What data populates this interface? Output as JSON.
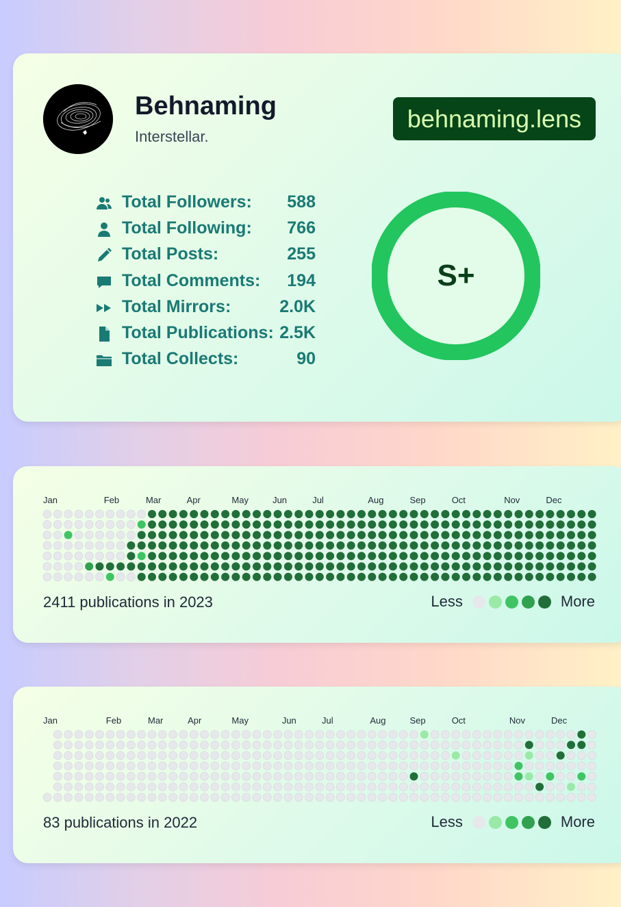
{
  "profile": {
    "name": "Behnaming",
    "bio": "Interstellar.",
    "handle": "behnaming.lens",
    "rank": "S+",
    "stats": [
      {
        "icon": "users-icon",
        "label": "Total Followers:",
        "value": "588"
      },
      {
        "icon": "user-icon",
        "label": "Total Following:",
        "value": "766"
      },
      {
        "icon": "pencil-icon",
        "label": "Total Posts:",
        "value": "255"
      },
      {
        "icon": "comment-icon",
        "label": "Total Comments:",
        "value": "194"
      },
      {
        "icon": "mirror-icon",
        "label": "Total Mirrors:",
        "value": "2.0K"
      },
      {
        "icon": "file-icon",
        "label": "Total Publications:",
        "value": "2.5K"
      },
      {
        "icon": "folder-icon",
        "label": "Total Collects:",
        "value": "90"
      }
    ]
  },
  "colors": {
    "levels": [
      "#e6e8eb",
      "#9be9a8",
      "#40c463",
      "#30a14e",
      "#216e39"
    ],
    "accent": "#1a7a74",
    "badge_bg": "#064518",
    "badge_text": "#d9ffb0",
    "ring": "#22c55e"
  },
  "legend": {
    "less": "Less",
    "more": "More"
  },
  "activity": [
    {
      "year": "2023",
      "summary": "2411 publications in 2023",
      "first_weekday": 0,
      "months": [
        "Jan",
        "Feb",
        "Mar",
        "Apr",
        "May",
        "Jun",
        "Jul",
        "Aug",
        "Sep",
        "Oct",
        "Nov",
        "Dec"
      ],
      "weeks": [
        [
          0,
          0,
          0,
          0,
          0,
          0,
          0
        ],
        [
          0,
          0,
          0,
          0,
          0,
          0,
          0
        ],
        [
          0,
          0,
          2,
          0,
          0,
          0,
          0
        ],
        [
          0,
          0,
          0,
          0,
          0,
          0,
          0
        ],
        [
          0,
          0,
          0,
          0,
          0,
          3,
          0
        ],
        [
          0,
          0,
          0,
          0,
          0,
          4,
          0
        ],
        [
          0,
          0,
          0,
          0,
          0,
          4,
          2
        ],
        [
          0,
          0,
          0,
          0,
          0,
          4,
          0
        ],
        [
          0,
          0,
          0,
          4,
          4,
          4,
          0
        ],
        [
          0,
          2,
          4,
          4,
          2,
          4,
          4
        ],
        [
          4,
          4,
          4,
          4,
          4,
          4,
          4
        ],
        [
          4,
          4,
          4,
          4,
          4,
          4,
          4
        ],
        [
          4,
          4,
          4,
          4,
          4,
          4,
          4
        ],
        [
          4,
          4,
          4,
          4,
          4,
          4,
          4
        ],
        [
          4,
          4,
          4,
          4,
          4,
          4,
          4
        ],
        [
          4,
          4,
          4,
          4,
          4,
          4,
          4
        ],
        [
          4,
          4,
          4,
          4,
          4,
          4,
          4
        ],
        [
          4,
          4,
          4,
          4,
          4,
          4,
          4
        ],
        [
          4,
          4,
          4,
          4,
          4,
          4,
          4
        ],
        [
          4,
          4,
          4,
          4,
          4,
          4,
          4
        ],
        [
          4,
          4,
          4,
          4,
          4,
          4,
          4
        ],
        [
          4,
          4,
          4,
          4,
          4,
          4,
          4
        ],
        [
          4,
          4,
          4,
          4,
          4,
          4,
          4
        ],
        [
          4,
          4,
          4,
          4,
          4,
          4,
          4
        ],
        [
          4,
          4,
          4,
          4,
          4,
          4,
          4
        ],
        [
          4,
          4,
          4,
          4,
          4,
          4,
          4
        ],
        [
          4,
          4,
          4,
          4,
          4,
          4,
          4
        ],
        [
          4,
          4,
          4,
          4,
          4,
          4,
          4
        ],
        [
          4,
          4,
          4,
          4,
          4,
          4,
          4
        ],
        [
          4,
          4,
          4,
          4,
          4,
          4,
          4
        ],
        [
          4,
          4,
          4,
          4,
          4,
          4,
          4
        ],
        [
          4,
          4,
          4,
          4,
          4,
          4,
          4
        ],
        [
          4,
          4,
          4,
          4,
          4,
          4,
          4
        ],
        [
          4,
          4,
          4,
          4,
          4,
          4,
          4
        ],
        [
          4,
          4,
          4,
          4,
          4,
          4,
          4
        ],
        [
          4,
          4,
          4,
          4,
          4,
          4,
          4
        ],
        [
          4,
          4,
          4,
          4,
          4,
          4,
          4
        ],
        [
          4,
          4,
          4,
          4,
          4,
          4,
          4
        ],
        [
          4,
          4,
          4,
          4,
          4,
          4,
          4
        ],
        [
          4,
          4,
          4,
          4,
          4,
          4,
          4
        ],
        [
          4,
          4,
          4,
          4,
          4,
          4,
          4
        ],
        [
          4,
          4,
          4,
          4,
          4,
          4,
          4
        ],
        [
          4,
          4,
          4,
          4,
          4,
          4,
          4
        ],
        [
          4,
          4,
          4,
          4,
          4,
          4,
          4
        ],
        [
          4,
          4,
          4,
          4,
          4,
          4,
          4
        ],
        [
          4,
          4,
          4,
          4,
          4,
          4,
          4
        ],
        [
          4,
          4,
          4,
          4,
          4,
          4,
          4
        ],
        [
          4,
          4,
          4,
          4,
          4,
          4,
          4
        ],
        [
          4,
          4,
          4,
          4,
          4,
          4,
          4
        ],
        [
          4,
          4,
          4,
          4,
          4,
          4,
          4
        ],
        [
          4,
          4,
          4,
          4,
          4,
          4,
          4
        ],
        [
          4,
          4,
          4,
          4,
          4,
          4,
          4
        ],
        [
          4,
          4,
          4,
          4,
          4,
          4,
          4
        ]
      ]
    },
    {
      "year": "2022",
      "summary": "83 publications in 2022",
      "first_weekday": 6,
      "months": [
        "Jan",
        "Feb",
        "Mar",
        "Apr",
        "May",
        "Jun",
        "Jul",
        "Aug",
        "Sep",
        "Oct",
        "Nov",
        "Dec"
      ],
      "weeks": [
        [
          0,
          0,
          0,
          0,
          0,
          0,
          0
        ],
        [
          0,
          0,
          0,
          0,
          0,
          0,
          0
        ],
        [
          0,
          0,
          0,
          0,
          0,
          0,
          0
        ],
        [
          0,
          0,
          0,
          0,
          0,
          0,
          0
        ],
        [
          0,
          0,
          0,
          0,
          0,
          0,
          0
        ],
        [
          0,
          0,
          0,
          0,
          0,
          0,
          0
        ],
        [
          0,
          0,
          0,
          0,
          0,
          0,
          0
        ],
        [
          0,
          0,
          0,
          0,
          0,
          0,
          0
        ],
        [
          0,
          0,
          0,
          0,
          0,
          0,
          0
        ],
        [
          0,
          0,
          0,
          0,
          0,
          0,
          0
        ],
        [
          0,
          0,
          0,
          0,
          0,
          0,
          0
        ],
        [
          0,
          0,
          0,
          0,
          0,
          0,
          0
        ],
        [
          0,
          0,
          0,
          0,
          0,
          0,
          0
        ],
        [
          0,
          0,
          0,
          0,
          0,
          0,
          0
        ],
        [
          0,
          0,
          0,
          0,
          0,
          0,
          0
        ],
        [
          0,
          0,
          0,
          0,
          0,
          0,
          0
        ],
        [
          0,
          0,
          0,
          0,
          0,
          0,
          0
        ],
        [
          0,
          0,
          0,
          0,
          0,
          0,
          0
        ],
        [
          0,
          0,
          0,
          0,
          0,
          0,
          0
        ],
        [
          0,
          0,
          0,
          0,
          0,
          0,
          0
        ],
        [
          0,
          0,
          0,
          0,
          0,
          0,
          0
        ],
        [
          0,
          0,
          0,
          0,
          0,
          0,
          0
        ],
        [
          0,
          0,
          0,
          0,
          0,
          0,
          0
        ],
        [
          0,
          0,
          0,
          0,
          0,
          0,
          0
        ],
        [
          0,
          0,
          0,
          0,
          0,
          0,
          0
        ],
        [
          0,
          0,
          0,
          0,
          0,
          0,
          0
        ],
        [
          0,
          0,
          0,
          0,
          0,
          0,
          0
        ],
        [
          0,
          0,
          0,
          0,
          0,
          0,
          0
        ],
        [
          0,
          0,
          0,
          0,
          0,
          0,
          0
        ],
        [
          0,
          0,
          0,
          0,
          0,
          0,
          0
        ],
        [
          0,
          0,
          0,
          0,
          0,
          0,
          0
        ],
        [
          0,
          0,
          0,
          0,
          0,
          0,
          0
        ],
        [
          0,
          0,
          0,
          0,
          0,
          0,
          0
        ],
        [
          0,
          0,
          0,
          0,
          0,
          0,
          0
        ],
        [
          0,
          0,
          0,
          0,
          0,
          0,
          0
        ],
        [
          0,
          0,
          0,
          0,
          0,
          0,
          0
        ],
        [
          0,
          0,
          0,
          0,
          0,
          0,
          0
        ],
        [
          0,
          0,
          0,
          0,
          0,
          0,
          0
        ],
        [
          0,
          0,
          0,
          0,
          0,
          0,
          0
        ],
        [
          0,
          0,
          0,
          0,
          0,
          0,
          0
        ],
        [
          0,
          0,
          0,
          0,
          0,
          0,
          0
        ],
        [
          0,
          0,
          0,
          0,
          0,
          0,
          0
        ],
        [
          0,
          0,
          0,
          0,
          0,
          0,
          0
        ],
        [
          0,
          0,
          0,
          0,
          0,
          0,
          0
        ],
        [
          0,
          0,
          0,
          0,
          0,
          0,
          0
        ],
        [
          0,
          0,
          0,
          0,
          0,
          0,
          0
        ],
        [
          0,
          0,
          0,
          0,
          0,
          0,
          0
        ],
        [
          0,
          0,
          0,
          0,
          0,
          0,
          0
        ],
        [
          0,
          0,
          0,
          0,
          0,
          0,
          0
        ],
        [
          0,
          0,
          0,
          0,
          0,
          0,
          0
        ],
        [
          0,
          0,
          0,
          0,
          0,
          0,
          0
        ],
        [
          0,
          0,
          0,
          0,
          0,
          0,
          0
        ],
        [
          0,
          0,
          0,
          0,
          0,
          0,
          0
        ]
      ],
      "highlights": [
        [
          35,
          4,
          4
        ],
        [
          36,
          0,
          1
        ],
        [
          39,
          2,
          1
        ],
        [
          45,
          3,
          2
        ],
        [
          45,
          4,
          2
        ],
        [
          46,
          1,
          4
        ],
        [
          46,
          2,
          1
        ],
        [
          46,
          4,
          1
        ],
        [
          47,
          5,
          4
        ],
        [
          48,
          4,
          2
        ],
        [
          49,
          2,
          4
        ],
        [
          50,
          1,
          4
        ],
        [
          50,
          5,
          1
        ],
        [
          51,
          0,
          4
        ],
        [
          51,
          1,
          4
        ],
        [
          51,
          4,
          2
        ]
      ]
    }
  ]
}
